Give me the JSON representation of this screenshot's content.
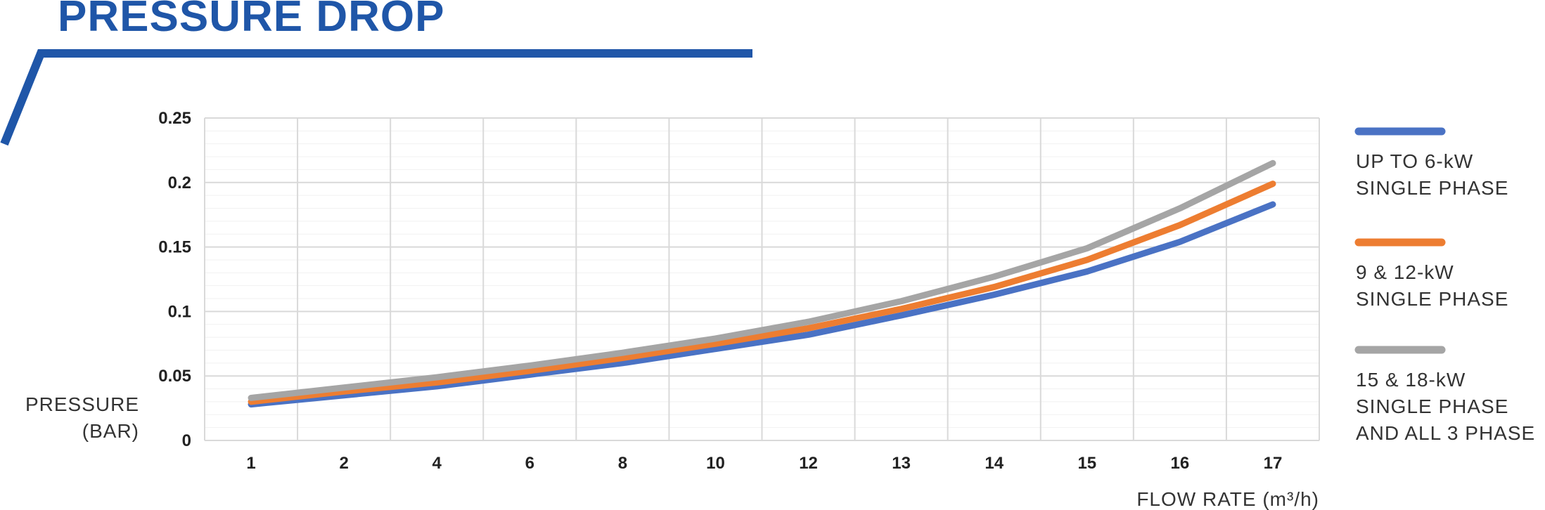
{
  "title": "PRESSURE DROP",
  "colors": {
    "brand": "#1f56a8"
  },
  "chart_data": {
    "type": "line",
    "title": "PRESSURE DROP",
    "xlabel": "FLOW RATE (m³/h)",
    "ylabel_lines": [
      "PRESSURE",
      "(BAR)"
    ],
    "categories": [
      "1",
      "2",
      "4",
      "6",
      "8",
      "10",
      "12",
      "13",
      "14",
      "15",
      "16",
      "17"
    ],
    "y_ticks": [
      "0",
      "0.05",
      "0.1",
      "0.15",
      "0.2",
      "0.25"
    ],
    "ylim": [
      0,
      0.25
    ],
    "grid": true,
    "legend_position": "right",
    "series": [
      {
        "name_lines": [
          "UP TO 6-kW",
          "SINGLE PHASE"
        ],
        "color": "#4a72c4",
        "values": [
          0.028,
          0.035,
          0.042,
          0.051,
          0.06,
          0.071,
          0.082,
          0.097,
          0.113,
          0.131,
          0.154,
          0.183
        ]
      },
      {
        "name_lines": [
          "9 & 12-kW",
          "SINGLE PHASE"
        ],
        "color": "#ed7d31",
        "values": [
          0.03,
          0.038,
          0.045,
          0.054,
          0.064,
          0.075,
          0.087,
          0.102,
          0.119,
          0.14,
          0.167,
          0.199
        ]
      },
      {
        "name_lines": [
          "15 & 18-kW",
          "SINGLE PHASE",
          "AND ALL 3 PHASE"
        ],
        "color": "#a5a5a5",
        "values": [
          0.033,
          0.041,
          0.049,
          0.058,
          0.068,
          0.079,
          0.092,
          0.108,
          0.127,
          0.149,
          0.18,
          0.215
        ]
      }
    ]
  }
}
